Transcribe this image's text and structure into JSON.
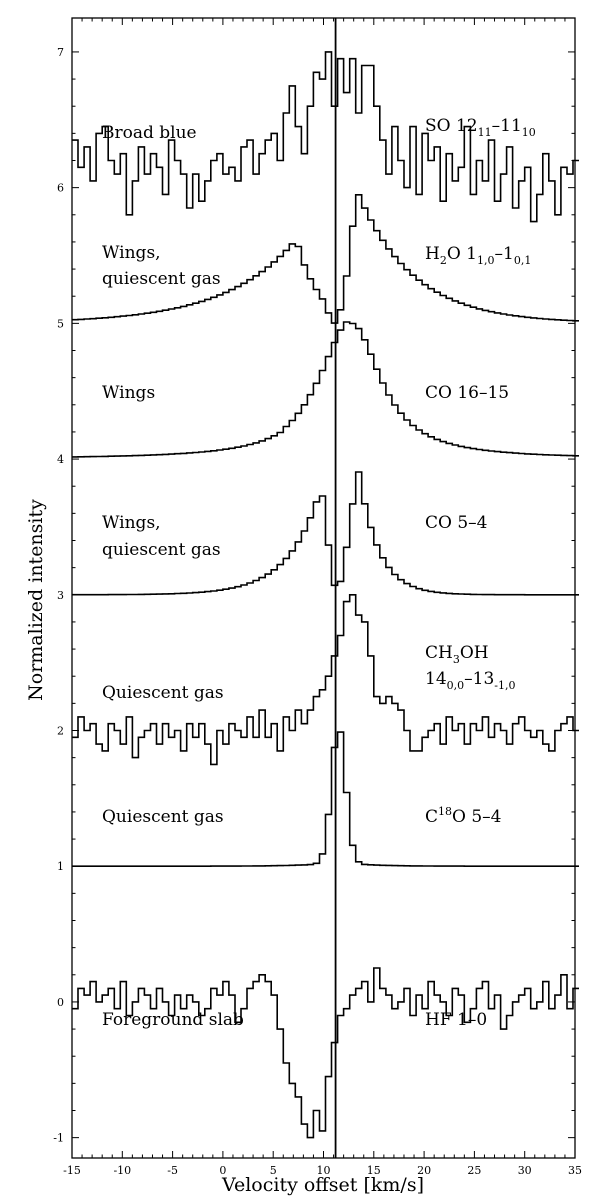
{
  "chart_data": {
    "type": "line",
    "title": "",
    "xlabel": "Velocity offset [km/s]",
    "ylabel": "Normalized intensity",
    "xlim": [
      -15,
      35
    ],
    "ylim": [
      -1.15,
      7.25
    ],
    "x_ticks": [
      "-15",
      "-10",
      "-5",
      "0",
      "5",
      "10",
      "15",
      "20",
      "25",
      "30",
      "35"
    ],
    "y_ticks": [
      "-1",
      "0",
      "1",
      "2",
      "3",
      "4",
      "5",
      "6",
      "7"
    ],
    "step_plot": true,
    "vertical_line": {
      "x": 11.2
    },
    "series": [
      {
        "name": "SO 12₁₁–11₁₀",
        "offset": 6,
        "x_start": -15,
        "x_step": 0.6,
        "y": [
          0.35,
          0.15,
          0.3,
          0.05,
          0.4,
          0.45,
          0.2,
          0.1,
          0.25,
          -0.2,
          0.05,
          0.3,
          0.1,
          0.25,
          0.15,
          -0.05,
          0.35,
          0.2,
          0.1,
          -0.15,
          0.1,
          -0.1,
          0.05,
          0.2,
          0.25,
          0.1,
          0.15,
          0.05,
          0.3,
          0.35,
          0.1,
          0.25,
          0.35,
          0.4,
          0.2,
          0.55,
          0.75,
          0.45,
          0.25,
          0.6,
          0.85,
          0.8,
          1.0,
          0.6,
          0.95,
          0.7,
          0.95,
          0.55,
          0.9,
          0.9,
          0.6,
          0.35,
          0.1,
          0.45,
          0.2,
          0.0,
          0.45,
          -0.05,
          0.4,
          0.2,
          0.3,
          -0.1,
          0.25,
          0.05,
          0.15,
          0.45,
          -0.05,
          0.2,
          0.05,
          0.35,
          -0.1,
          0.1,
          0.3,
          -0.15,
          0.05,
          0.15,
          -0.25,
          -0.05,
          0.25,
          0.05,
          -0.2,
          0.15,
          0.1,
          0.2
        ]
      },
      {
        "name": "H₂O 1₁,₀–1₀,₁",
        "offset": 5,
        "profile": {
          "left_peak_x": 7.0,
          "left_peak": 0.62,
          "absorption_x": 10.8,
          "absorption_min": 0.0,
          "right_peak_x": 12.9,
          "right_peak": 1.0
        }
      },
      {
        "name": "CO 16–15",
        "offset": 4,
        "profile": {
          "peak_x": 12.5,
          "peak": 1.0,
          "shoulder_x": 9.5,
          "shoulder": 0.55
        }
      },
      {
        "name": "CO 5–4",
        "offset": 3,
        "profile": {
          "left_peak_x": 9.5,
          "left_peak": 0.8,
          "absorption_x": 11.0,
          "absorption_min": 0.18,
          "right_peak_x": 13.0,
          "right_peak": 1.0
        }
      },
      {
        "name": "CH₃OH 14₀,₀–13₋₁,₀",
        "offset": 2,
        "x_start": -15,
        "x_step": 0.6,
        "y": [
          -0.05,
          0.1,
          0.0,
          0.05,
          -0.1,
          -0.15,
          0.05,
          0.0,
          -0.1,
          0.1,
          -0.2,
          -0.05,
          0.0,
          0.05,
          -0.1,
          0.05,
          -0.05,
          0.0,
          -0.15,
          0.05,
          -0.05,
          0.05,
          -0.1,
          -0.25,
          0.0,
          -0.1,
          0.05,
          0.0,
          -0.05,
          0.1,
          -0.05,
          0.15,
          -0.05,
          0.05,
          -0.15,
          0.1,
          0.0,
          0.15,
          0.05,
          0.15,
          0.25,
          0.3,
          0.4,
          0.55,
          0.7,
          0.95,
          1.0,
          0.85,
          0.8,
          0.55,
          0.25,
          0.2,
          0.25,
          0.2,
          0.15,
          0.0,
          -0.15,
          -0.15,
          -0.05,
          0.0,
          0.05,
          -0.1,
          0.1,
          0.0,
          0.05,
          -0.1,
          0.05,
          0.0,
          0.1,
          -0.05,
          0.05,
          0.0,
          -0.1,
          0.05,
          0.1,
          0.0,
          -0.05,
          0.0,
          -0.1,
          -0.15,
          0.0,
          0.05,
          0.1,
          0.0
        ]
      },
      {
        "name": "C¹⁸O 5–4",
        "offset": 1,
        "profile": {
          "peak_x": 11.2,
          "peak": 1.0,
          "width": 0.7
        }
      },
      {
        "name": "HF 1–0",
        "offset": 0,
        "x_start": -15,
        "x_step": 0.6,
        "y": [
          -0.05,
          0.1,
          0.05,
          0.15,
          0.0,
          0.05,
          0.1,
          -0.05,
          0.15,
          -0.1,
          0.0,
          0.1,
          0.05,
          -0.05,
          0.1,
          0.0,
          -0.1,
          0.05,
          -0.05,
          0.05,
          0.0,
          -0.1,
          -0.05,
          0.1,
          0.05,
          0.15,
          0.05,
          -0.15,
          -0.05,
          0.1,
          0.15,
          0.2,
          0.15,
          0.05,
          -0.2,
          -0.45,
          -0.6,
          -0.7,
          -0.9,
          -1.0,
          -0.8,
          -0.95,
          -0.55,
          -0.3,
          -0.1,
          -0.05,
          0.05,
          0.1,
          0.15,
          0.0,
          0.25,
          0.1,
          0.05,
          -0.05,
          0.0,
          0.1,
          -0.1,
          0.05,
          -0.05,
          0.15,
          0.05,
          0.0,
          -0.1,
          0.1,
          0.05,
          -0.15,
          -0.05,
          0.1,
          0.15,
          -0.05,
          0.05,
          -0.2,
          -0.1,
          0.0,
          0.05,
          0.1,
          -0.05,
          0.0,
          0.15,
          -0.05,
          0.05,
          0.2,
          -0.05,
          0.1
        ]
      }
    ],
    "annotations_left": [
      "Broad blue",
      "Wings,",
      "quiescent gas",
      "Wings",
      "Wings,",
      "quiescent gas",
      "Quiescent gas",
      "Quiescent gas",
      "Foreground slab"
    ],
    "labels_right": {
      "so": {
        "base": "SO 12",
        "sub1": "11",
        "mid": "–11",
        "sub2": "10"
      },
      "h2o": {
        "base": "H",
        "sub0": "2",
        "mid0": "O 1",
        "sub1": "1,0",
        "mid": "–1",
        "sub2": "0,1"
      },
      "co1615": "CO 16–15",
      "co54": "CO 5–4",
      "ch3oh_l1": {
        "base": "CH",
        "sub": "3",
        "rest": "OH"
      },
      "ch3oh_l2": {
        "base": "14",
        "sub1": "0,0",
        "mid": "–13",
        "sub2": "-1,0"
      },
      "c18o": {
        "pre": "C",
        "sup": "18",
        "rest": "O 5–4"
      },
      "hf": "HF 1–0"
    }
  }
}
